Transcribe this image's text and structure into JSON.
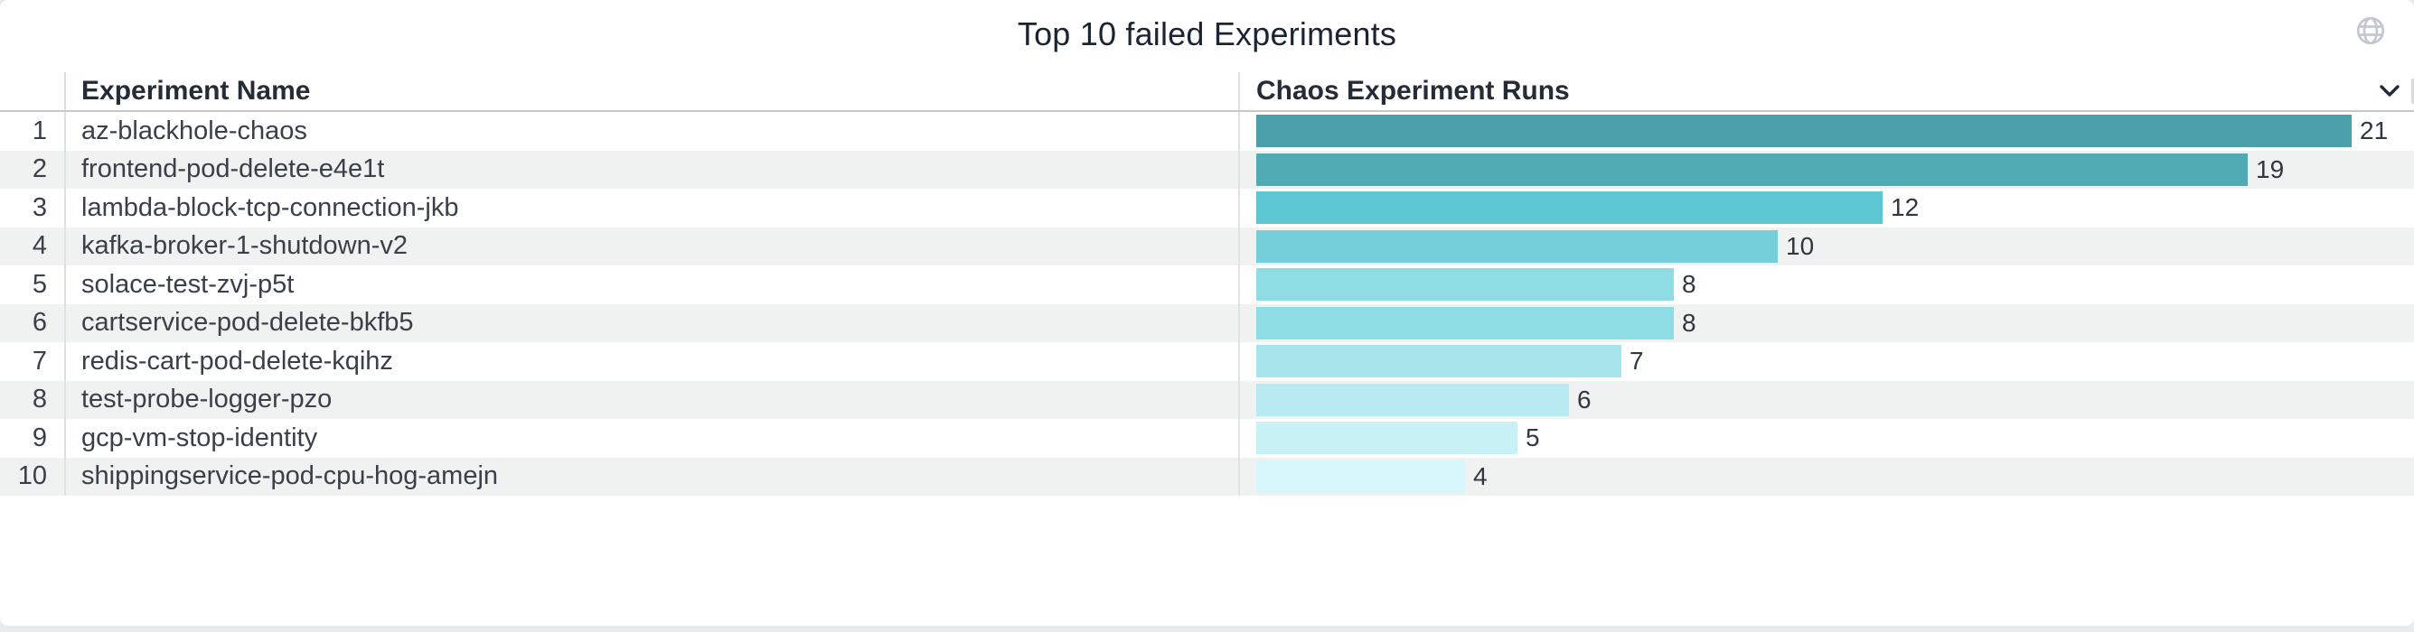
{
  "widget": {
    "title": "Top 10 failed Experiments"
  },
  "table": {
    "columns": [
      "Experiment Name",
      "Chaos Experiment Runs"
    ],
    "rows": [
      {
        "rank": 1,
        "name": "az-blackhole-chaos",
        "runs": 21,
        "bar_color": "#49a0aa"
      },
      {
        "rank": 2,
        "name": "frontend-pod-delete-e4e1t",
        "runs": 19,
        "bar_color": "#4faab3"
      },
      {
        "rank": 3,
        "name": "lambda-block-tcp-connection-jkb",
        "runs": 12,
        "bar_color": "#5cc6d3"
      },
      {
        "rank": 4,
        "name": "kafka-broker-1-shutdown-v2",
        "runs": 10,
        "bar_color": "#75cfdb"
      },
      {
        "rank": 5,
        "name": "solace-test-zvj-p5t",
        "runs": 8,
        "bar_color": "#8edce4"
      },
      {
        "rank": 6,
        "name": "cartservice-pod-delete-bkfb5",
        "runs": 8,
        "bar_color": "#8edce4"
      },
      {
        "rank": 7,
        "name": "redis-cart-pod-delete-kqihz",
        "runs": 7,
        "bar_color": "#a6e4eb"
      },
      {
        "rank": 8,
        "name": "test-probe-logger-pzo",
        "runs": 6,
        "bar_color": "#b7ebf1"
      },
      {
        "rank": 9,
        "name": "gcp-vm-stop-identity",
        "runs": 5,
        "bar_color": "#c8f1f6"
      },
      {
        "rank": 10,
        "name": "shippingservice-pod-cpu-hog-amejn",
        "runs": 4,
        "bar_color": "#d6f6fa"
      }
    ]
  },
  "icons": {
    "globe_color": "#c3c8d0",
    "chevron_color": "#222b38"
  },
  "colors": {
    "row_alt_bg": "#f0f1f1",
    "header_underline": "#c6c9cc",
    "column_divider": "#dfe1e2",
    "title_text": "#1b2433"
  },
  "chart_data": {
    "type": "bar",
    "orientation": "horizontal",
    "title": "Top 10 failed Experiments",
    "categories": [
      "az-blackhole-chaos",
      "frontend-pod-delete-e4e1t",
      "lambda-block-tcp-connection-jkb",
      "kafka-broker-1-shutdown-v2",
      "solace-test-zvj-p5t",
      "cartservice-pod-delete-bkfb5",
      "redis-cart-pod-delete-kqihz",
      "test-probe-logger-pzo",
      "gcp-vm-stop-identity",
      "shippingservice-pod-cpu-hog-amejn"
    ],
    "values": [
      21,
      19,
      12,
      10,
      8,
      8,
      7,
      6,
      5,
      4
    ],
    "xlabel": "Chaos Experiment Runs",
    "ylabel": "Experiment Name",
    "xlim": [
      0,
      21
    ],
    "grid": false,
    "legend": false,
    "data_labels": true,
    "color_scale": [
      "#49a0aa",
      "#d6f6fa"
    ]
  }
}
